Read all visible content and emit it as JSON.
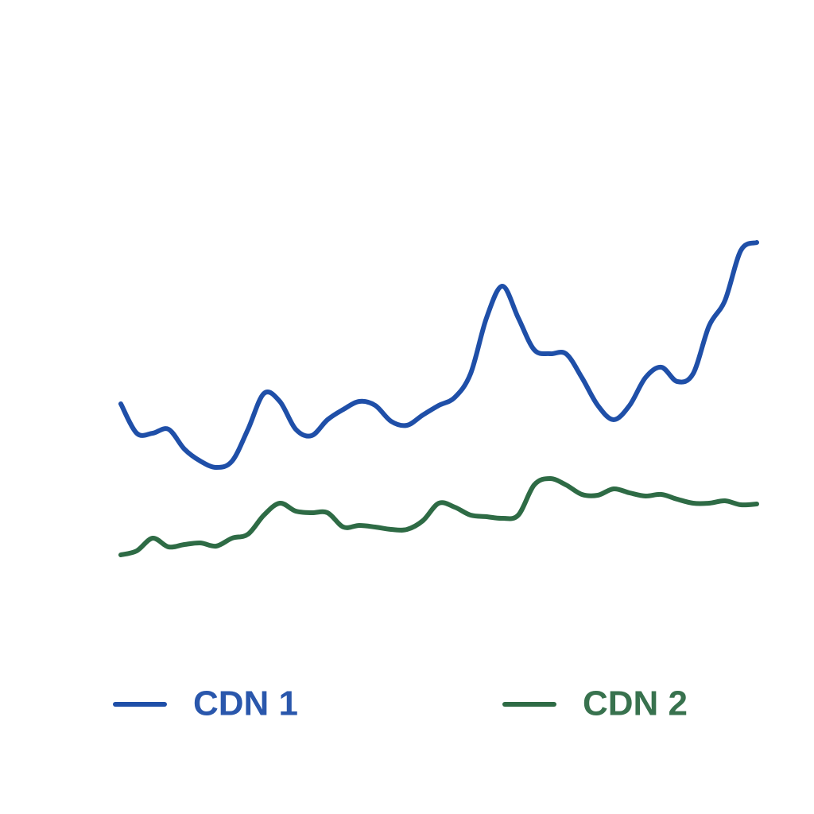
{
  "chart_data": {
    "type": "line",
    "x": [
      0,
      1,
      2,
      3,
      4,
      5,
      6,
      7,
      8,
      9,
      10,
      11,
      12,
      13,
      14,
      15,
      16,
      17,
      18,
      19,
      20,
      21,
      22,
      23,
      24,
      25,
      26,
      27,
      28,
      29,
      30,
      31,
      32,
      33,
      34,
      35,
      36,
      37,
      38,
      39,
      40
    ],
    "xlim": [
      0,
      40
    ],
    "ylim": [
      0,
      600
    ],
    "legend": "bottom",
    "series": [
      {
        "name": "CDN 1",
        "color": "#1f4fa8",
        "values": [
          292,
          255,
          255,
          260,
          235,
          220,
          212,
          220,
          260,
          305,
          295,
          260,
          252,
          272,
          285,
          295,
          290,
          270,
          265,
          278,
          290,
          300,
          330,
          400,
          440,
          400,
          360,
          355,
          355,
          325,
          290,
          272,
          290,
          325,
          338,
          320,
          330,
          390,
          422,
          485,
          495
        ]
      },
      {
        "name": "CDN 2",
        "color": "#2e6b45",
        "values": [
          102,
          107,
          123,
          112,
          115,
          117,
          113,
          123,
          128,
          152,
          167,
          157,
          155,
          155,
          137,
          139,
          137,
          134,
          134,
          145,
          167,
          162,
          152,
          150,
          148,
          152,
          190,
          198,
          190,
          178,
          177,
          185,
          180,
          176,
          178,
          172,
          167,
          167,
          170,
          165,
          166
        ]
      }
    ]
  }
}
